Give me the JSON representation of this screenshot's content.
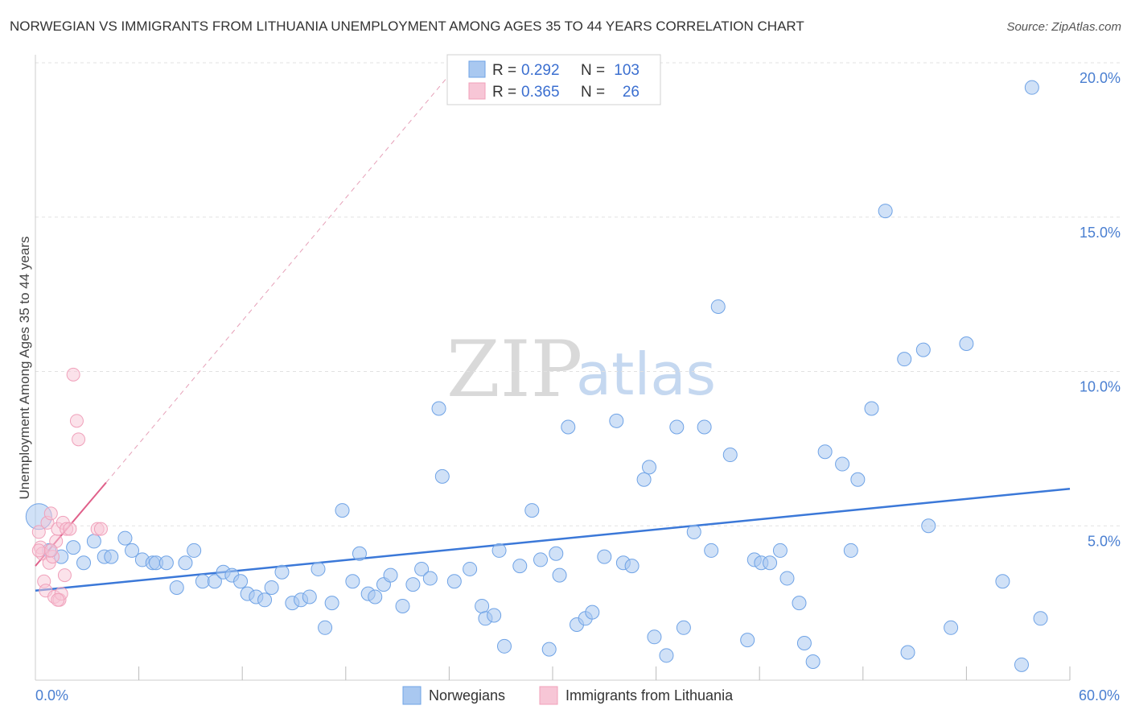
{
  "chart_data": {
    "type": "scatter",
    "title": "NORWEGIAN VS IMMIGRANTS FROM LITHUANIA UNEMPLOYMENT AMONG AGES 35 TO 44 YEARS CORRELATION CHART",
    "source": "Source: ZipAtlas.com",
    "ylabel": "Unemployment Among Ages 35 to 44 years",
    "xlim": [
      0,
      60
    ],
    "ylim": [
      0,
      20
    ],
    "x_tick_labels": [
      "0.0%",
      "60.0%"
    ],
    "y_ticks": [
      5,
      10,
      15,
      20
    ],
    "y_tick_labels": [
      "5.0%",
      "10.0%",
      "15.0%",
      "20.0%"
    ],
    "grid": true,
    "legend_position": "top-center",
    "watermark": {
      "zip": "ZIP",
      "atlas": "atlas"
    },
    "stats_legend": [
      {
        "r_label": "R =",
        "r_value": "0.292",
        "n_label": "N =",
        "n_value": "103"
      },
      {
        "r_label": "R =",
        "r_value": "0.365",
        "n_label": "N =",
        "n_value": "26"
      }
    ],
    "series": [
      {
        "name": "Norwegians",
        "color": "#6fa3e6",
        "fill": "#a9c8f0",
        "trend": {
          "x": [
            0,
            60
          ],
          "y": [
            2.9,
            6.2
          ],
          "color": "#3b78d8"
        },
        "points": [
          [
            0.2,
            5.3
          ],
          [
            0.8,
            4.2
          ],
          [
            1.5,
            4.0
          ],
          [
            2.2,
            4.3
          ],
          [
            2.8,
            3.8
          ],
          [
            3.4,
            4.5
          ],
          [
            4.0,
            4.0
          ],
          [
            4.4,
            4.0
          ],
          [
            5.2,
            4.6
          ],
          [
            5.6,
            4.2
          ],
          [
            6.2,
            3.9
          ],
          [
            6.8,
            3.8
          ],
          [
            7.0,
            3.8
          ],
          [
            7.6,
            3.8
          ],
          [
            8.2,
            3.0
          ],
          [
            8.7,
            3.8
          ],
          [
            9.2,
            4.2
          ],
          [
            9.7,
            3.2
          ],
          [
            10.4,
            3.2
          ],
          [
            10.9,
            3.5
          ],
          [
            11.4,
            3.4
          ],
          [
            11.9,
            3.2
          ],
          [
            12.3,
            2.8
          ],
          [
            12.8,
            2.7
          ],
          [
            13.3,
            2.6
          ],
          [
            13.7,
            3.0
          ],
          [
            14.3,
            3.5
          ],
          [
            14.9,
            2.5
          ],
          [
            15.4,
            2.6
          ],
          [
            15.9,
            2.7
          ],
          [
            16.4,
            3.6
          ],
          [
            16.8,
            1.7
          ],
          [
            17.2,
            2.5
          ],
          [
            17.8,
            5.5
          ],
          [
            18.4,
            3.2
          ],
          [
            18.8,
            4.1
          ],
          [
            19.3,
            2.8
          ],
          [
            19.7,
            2.7
          ],
          [
            20.2,
            3.1
          ],
          [
            20.6,
            3.4
          ],
          [
            21.3,
            2.4
          ],
          [
            21.9,
            3.1
          ],
          [
            22.4,
            3.6
          ],
          [
            22.9,
            3.3
          ],
          [
            23.4,
            8.8
          ],
          [
            23.6,
            6.6
          ],
          [
            24.3,
            3.2
          ],
          [
            25.2,
            3.6
          ],
          [
            25.9,
            2.4
          ],
          [
            26.1,
            2.0
          ],
          [
            26.6,
            2.1
          ],
          [
            26.9,
            4.2
          ],
          [
            27.2,
            1.1
          ],
          [
            28.1,
            3.7
          ],
          [
            28.8,
            5.5
          ],
          [
            29.3,
            3.9
          ],
          [
            29.8,
            1.0
          ],
          [
            30.4,
            3.4
          ],
          [
            30.9,
            8.2
          ],
          [
            31.4,
            1.8
          ],
          [
            31.9,
            2.0
          ],
          [
            32.3,
            2.2
          ],
          [
            33.0,
            4.0
          ],
          [
            33.7,
            8.4
          ],
          [
            34.1,
            3.8
          ],
          [
            34.6,
            3.7
          ],
          [
            35.3,
            6.5
          ],
          [
            35.6,
            6.9
          ],
          [
            35.9,
            1.4
          ],
          [
            36.6,
            0.8
          ],
          [
            37.2,
            8.2
          ],
          [
            37.6,
            1.7
          ],
          [
            38.2,
            4.8
          ],
          [
            38.8,
            8.2
          ],
          [
            39.2,
            4.2
          ],
          [
            39.6,
            12.1
          ],
          [
            40.3,
            7.3
          ],
          [
            41.3,
            1.3
          ],
          [
            41.7,
            3.9
          ],
          [
            42.1,
            3.8
          ],
          [
            42.6,
            3.8
          ],
          [
            43.2,
            4.2
          ],
          [
            43.6,
            3.3
          ],
          [
            44.3,
            2.5
          ],
          [
            44.6,
            1.2
          ],
          [
            45.1,
            0.6
          ],
          [
            45.8,
            7.4
          ],
          [
            46.8,
            7.0
          ],
          [
            47.3,
            4.2
          ],
          [
            47.7,
            6.5
          ],
          [
            48.5,
            8.8
          ],
          [
            49.3,
            15.2
          ],
          [
            50.4,
            10.4
          ],
          [
            50.6,
            0.9
          ],
          [
            51.5,
            10.7
          ],
          [
            51.8,
            5.0
          ],
          [
            53.1,
            1.7
          ],
          [
            54.0,
            10.9
          ],
          [
            56.1,
            3.2
          ],
          [
            57.2,
            0.5
          ],
          [
            57.8,
            19.2
          ],
          [
            58.3,
            2.0
          ],
          [
            30.2,
            4.1
          ]
        ]
      },
      {
        "name": "Immigrants from Lithuania",
        "color": "#f0a0ba",
        "fill": "#f7c6d6",
        "trend": {
          "x": [
            0,
            4.1
          ],
          "y": [
            3.7,
            6.4
          ],
          "color": "#e0608a"
        },
        "trend_extension": {
          "x": [
            4.1,
            24.0
          ],
          "y": [
            6.4,
            19.6
          ],
          "color": "#e6a0b8"
        },
        "points": [
          [
            0.2,
            4.8
          ],
          [
            0.3,
            4.3
          ],
          [
            0.4,
            4.1
          ],
          [
            0.5,
            3.2
          ],
          [
            0.6,
            2.9
          ],
          [
            0.7,
            5.1
          ],
          [
            0.8,
            3.8
          ],
          [
            0.9,
            5.4
          ],
          [
            1.0,
            4.0
          ],
          [
            1.1,
            2.7
          ],
          [
            1.2,
            4.5
          ],
          [
            1.3,
            4.9
          ],
          [
            1.4,
            2.6
          ],
          [
            1.5,
            2.8
          ],
          [
            1.6,
            5.1
          ],
          [
            1.7,
            3.4
          ],
          [
            1.8,
            4.9
          ],
          [
            2.0,
            4.9
          ],
          [
            2.2,
            9.9
          ],
          [
            2.4,
            8.4
          ],
          [
            2.5,
            7.8
          ],
          [
            3.6,
            4.9
          ],
          [
            3.8,
            4.9
          ],
          [
            0.2,
            4.2
          ],
          [
            1.3,
            2.6
          ],
          [
            0.9,
            4.2
          ]
        ]
      }
    ]
  }
}
